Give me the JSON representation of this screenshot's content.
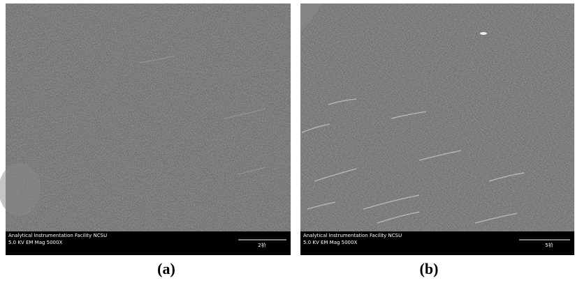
{
  "panels": [
    {
      "info_lines": [
        "Analytical Instrumentation Facility NCSU",
        "5.0 KV EM Mag 5000X"
      ],
      "scale_label": "2祄",
      "caption": "(a)"
    },
    {
      "info_lines": [
        "Analytical Instrumentation Facility NCSU",
        "5.0 KV EM Mag 5000X"
      ],
      "scale_label": "5祄",
      "caption": "(b)"
    }
  ]
}
